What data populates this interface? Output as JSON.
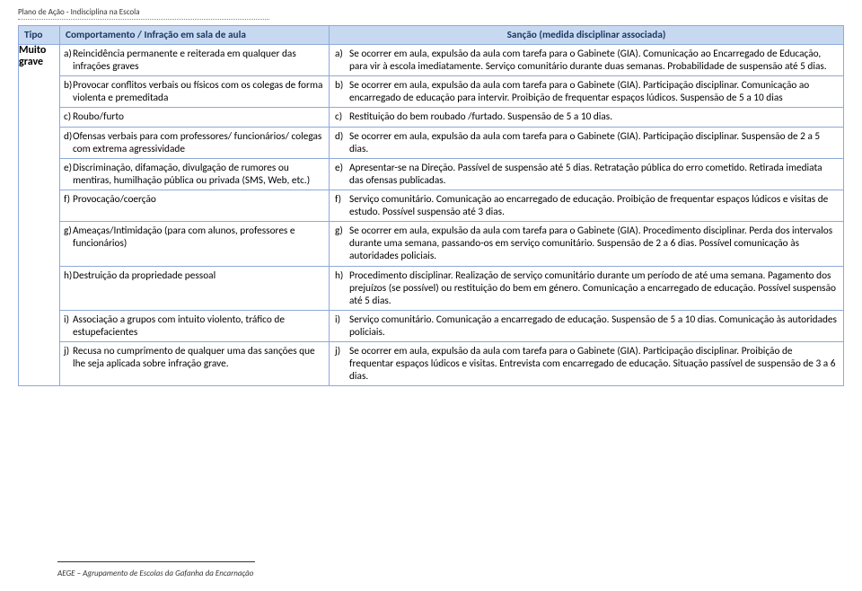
{
  "doc": {
    "title": "Plano de Ação - Indisciplina na Escola",
    "footer": "AEGE – Agrupamento de Escolas da Gafanha da Encarnação"
  },
  "colors": {
    "header_bg": "#c6d9f1",
    "header_text": "#1f3864",
    "border": "#8ea9db",
    "body_text": "#000000",
    "page_bg": "#ffffff"
  },
  "header": {
    "tipo": "Tipo",
    "comportamento": "Comportamento / Infração em sala de aula",
    "sancao": "Sanção (medida disciplinar associada)"
  },
  "tipo_label": "Muito grave",
  "rows": [
    {
      "ltr": "a)",
      "comp": "Reincidência permanente e reiterada em qualquer das infrações graves",
      "sanc": "Se ocorrer em aula, expulsão da aula com tarefa para o Gabinete (GIA). Comunicação ao Encarregado de Educação, para vir à escola imediatamente. Serviço comunitário durante duas semanas. Probabilidade de suspensão até 5 dias."
    },
    {
      "ltr": "b)",
      "comp": "Provocar conflitos verbais ou físicos com os colegas de forma violenta e premeditada",
      "sanc": "Se ocorrer em aula, expulsão da aula com tarefa para o Gabinete (GIA). Participação disciplinar. Comunicação ao encarregado de educação para intervir. Proibição de frequentar espaços lúdicos. Suspensão de 5 a 10 dias"
    },
    {
      "ltr": "c)",
      "comp": "Roubo/furto",
      "sanc": "Restituição do bem roubado /furtado. Suspensão de 5 a 10 dias."
    },
    {
      "ltr": "d)",
      "comp": "Ofensas verbais para com professores/ funcionários/ colegas com extrema agressividade",
      "sanc": "Se ocorrer em aula, expulsão da aula com tarefa para o Gabinete (GIA). Participação disciplinar. Suspensão de 2 a 5 dias."
    },
    {
      "ltr": "e)",
      "comp": "Discriminação, difamação, divulgação de rumores ou mentiras, humilhação pública ou privada (SMS, Web, etc.)",
      "sanc": "Apresentar-se na Direção. Passível de suspensão até 5 dias. Retratação pública do erro cometido. Retirada imediata das ofensas publicadas."
    },
    {
      "ltr": "f)",
      "comp": "Provocação/coerção",
      "sanc": "Serviço comunitário. Comunicação ao encarregado de educação. Proibição de frequentar espaços lúdicos e visitas de estudo. Possível suspensão até 3 dias."
    },
    {
      "ltr": "g)",
      "comp": "Ameaças/Intimidação (para com alunos, professores e funcionários)",
      "sanc": "Se ocorrer em aula, expulsão da aula com tarefa para o Gabinete (GIA). Procedimento disciplinar. Perda dos intervalos durante uma semana, passando-os em serviço comunitário. Suspensão de 2 a 6 dias. Possível comunicação às autoridades policiais."
    },
    {
      "ltr": "h)",
      "comp": "Destruição da propriedade pessoal",
      "sanc": "Procedimento disciplinar. Realização de serviço comunitário durante um período de até uma semana. Pagamento dos prejuízos (se possível) ou restituição do bem em género. Comunicação a encarregado de educação. Possível suspensão até 5 dias."
    },
    {
      "ltr": "i)",
      "comp": "Associação a grupos com intuito violento, tráfico de estupefacientes",
      "sanc": "Serviço comunitário. Comunicação a encarregado de educação. Suspensão de 5 a 10 dias. Comunicação às autoridades policiais."
    },
    {
      "ltr": "j)",
      "comp": "Recusa no cumprimento de qualquer uma das sanções que lhe seja aplicada sobre infração grave.",
      "sanc": "Se ocorrer em aula, expulsão da aula com tarefa para o Gabinete (GIA). Participação disciplinar. Proibição de frequentar espaços lúdicos e visitas. Entrevista com encarregado de educação. Situação passível de suspensão de 3 a 6 dias."
    }
  ]
}
